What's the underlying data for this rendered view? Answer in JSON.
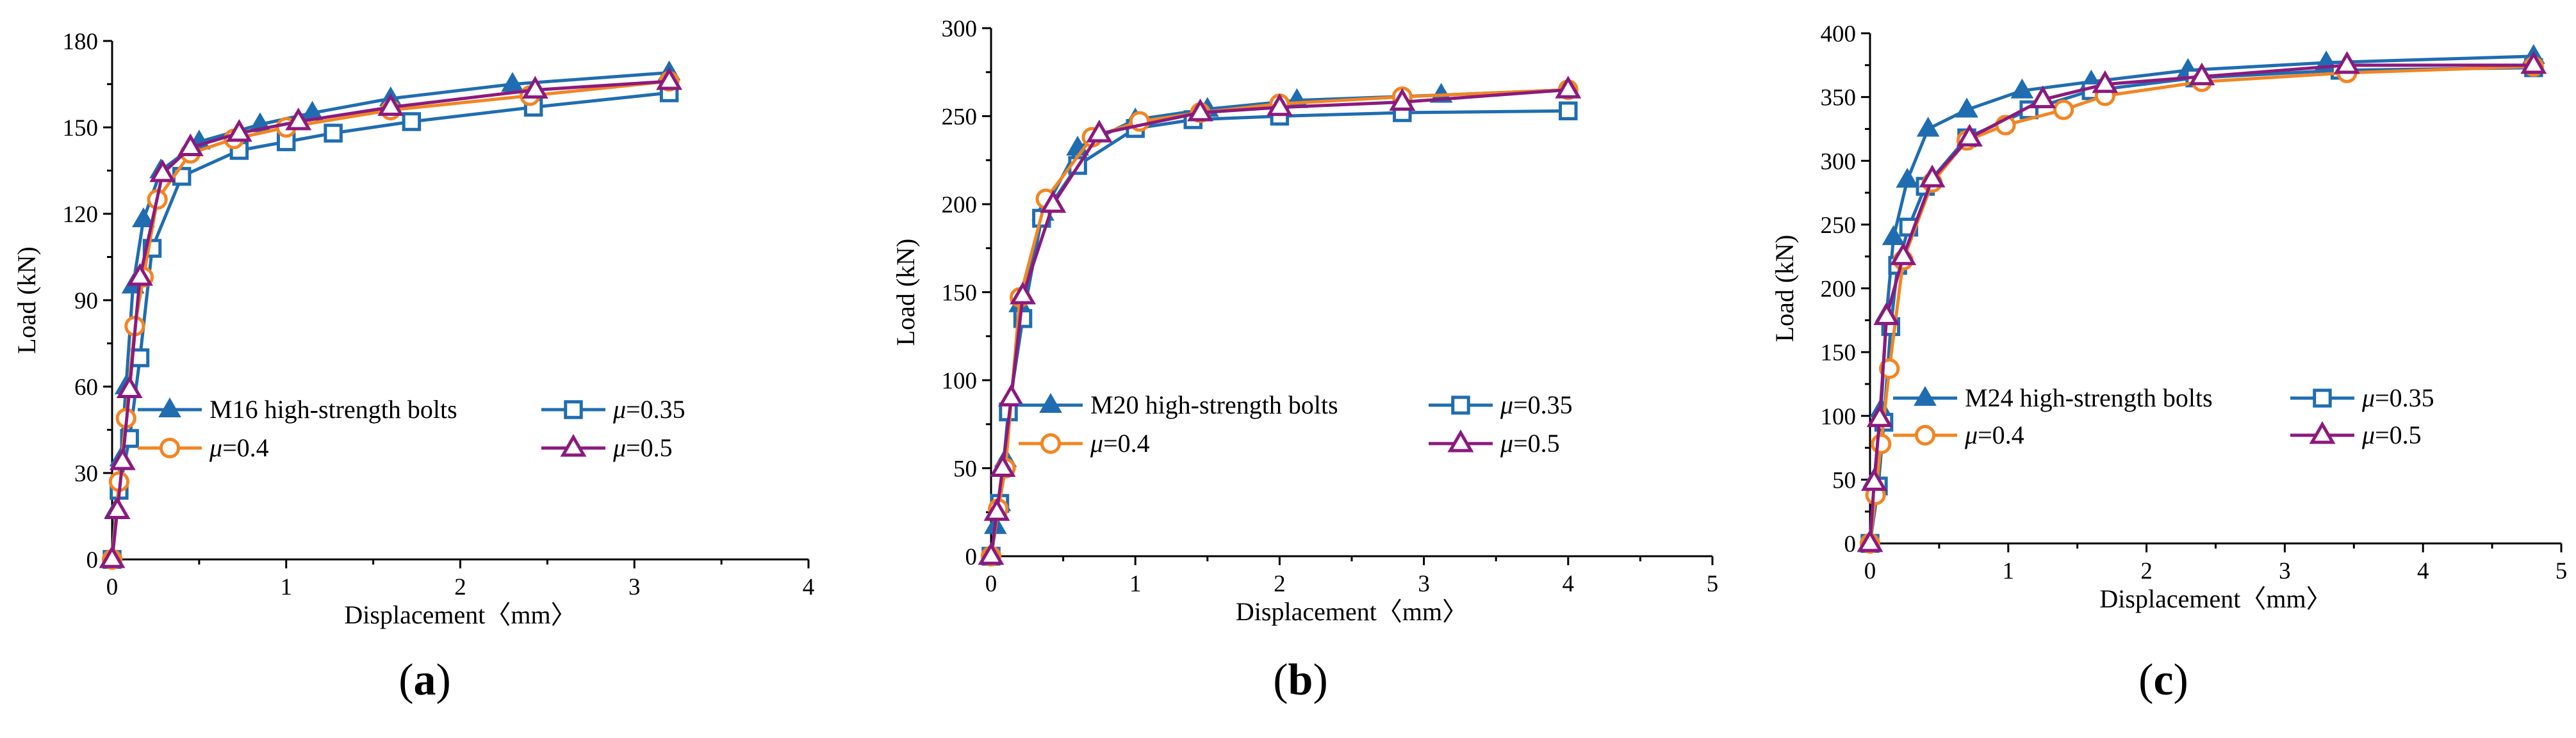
{
  "figure": {
    "colors": {
      "bolt": "#1f6db0",
      "mu035": "#1f6db0",
      "mu04": "#f28522",
      "mu05": "#8b1a7e"
    }
  },
  "chart_data": [
    {
      "type": "line",
      "panel_label": "(a)",
      "xlabel": "Displacement〈mm〉",
      "ylabel": "Load (kN)",
      "xlim": [
        0,
        4
      ],
      "ylim": [
        0,
        180
      ],
      "xticks": [
        0,
        1,
        2,
        3,
        4
      ],
      "yticks": [
        0,
        30,
        60,
        90,
        120,
        150,
        180
      ],
      "xtick_labels": [
        "0",
        "1",
        "2",
        "3",
        "4"
      ],
      "ytick_labels": [
        "0",
        "30",
        "60",
        "90",
        "120",
        "150",
        "180"
      ],
      "legend": [
        "M16 high-strength bolts",
        "μ=0.35",
        "μ=0.4",
        "μ=0.5"
      ],
      "series": [
        {
          "name": "M16 high-strength bolts",
          "marker": "triangle-filled",
          "color": "#1f6db0",
          "x": [
            0,
            0.02,
            0.05,
            0.08,
            0.12,
            0.18,
            0.28,
            0.5,
            0.85,
            1.15,
            1.6,
            2.3,
            3.2
          ],
          "y": [
            0,
            17,
            35,
            60,
            95,
            118,
            135,
            145,
            151,
            155,
            160,
            165,
            169
          ]
        },
        {
          "name": "μ=0.35",
          "marker": "square-open",
          "color": "#1f6db0",
          "x": [
            0,
            0.04,
            0.1,
            0.16,
            0.23,
            0.4,
            0.73,
            1.0,
            1.27,
            1.72,
            2.42,
            3.2
          ],
          "y": [
            0,
            24,
            42,
            70,
            108,
            133,
            142,
            145,
            148,
            152,
            157,
            162
          ]
        },
        {
          "name": "μ=0.4",
          "marker": "circle-open",
          "color": "#f28522",
          "x": [
            0,
            0.04,
            0.08,
            0.13,
            0.18,
            0.26,
            0.45,
            0.7,
            1.0,
            1.6,
            2.4,
            3.2
          ],
          "y": [
            0,
            27,
            49,
            81,
            98,
            125,
            141,
            146,
            150,
            156,
            161,
            166
          ]
        },
        {
          "name": "μ=0.5",
          "marker": "triangle-open",
          "color": "#8b1a7e",
          "x": [
            0,
            0.03,
            0.06,
            0.1,
            0.16,
            0.29,
            0.45,
            0.73,
            1.07,
            1.6,
            2.43,
            3.2
          ],
          "y": [
            0,
            17,
            34,
            59,
            98,
            134,
            143,
            148,
            152,
            157,
            163,
            166
          ]
        }
      ]
    },
    {
      "type": "line",
      "panel_label": "(b)",
      "xlabel": "Displacement〈mm〉",
      "ylabel": "Load (kN)",
      "xlim": [
        0,
        5
      ],
      "ylim": [
        0,
        300
      ],
      "xticks": [
        0,
        1,
        2,
        3,
        4,
        5
      ],
      "yticks": [
        0,
        50,
        100,
        150,
        200,
        250,
        300
      ],
      "xtick_labels": [
        "0",
        "1",
        "2",
        "3",
        "4",
        "5"
      ],
      "ytick_labels": [
        "0",
        "50",
        "100",
        "150",
        "200",
        "250",
        "300"
      ],
      "legend": [
        "M20 high-strength bolts",
        "μ=0.35",
        "μ=0.4",
        "μ=0.5"
      ],
      "series": [
        {
          "name": "M20 high-strength bolts",
          "marker": "triangle-filled",
          "color": "#1f6db0",
          "x": [
            0,
            0.03,
            0.06,
            0.1,
            0.2,
            0.36,
            0.6,
            1.0,
            1.5,
            2.12,
            3.12,
            4.0
          ],
          "y": [
            0,
            17,
            30,
            55,
            143,
            195,
            232,
            248,
            254,
            259,
            262,
            265
          ]
        },
        {
          "name": "μ=0.35",
          "marker": "square-open",
          "color": "#1f6db0",
          "x": [
            0,
            0.06,
            0.12,
            0.22,
            0.35,
            0.6,
            1.0,
            1.4,
            2.0,
            2.85,
            4.0
          ],
          "y": [
            0,
            30,
            82,
            135,
            192,
            222,
            243,
            248,
            250,
            252,
            253
          ]
        },
        {
          "name": "μ=0.4",
          "marker": "circle-open",
          "color": "#f28522",
          "x": [
            0,
            0.05,
            0.1,
            0.2,
            0.38,
            0.7,
            1.03,
            1.45,
            2.0,
            2.85,
            4.0
          ],
          "y": [
            0,
            27,
            50,
            147,
            203,
            238,
            247,
            252,
            257,
            261,
            265
          ]
        },
        {
          "name": "μ=0.5",
          "marker": "triangle-open",
          "color": "#8b1a7e",
          "x": [
            0,
            0.04,
            0.08,
            0.14,
            0.22,
            0.43,
            0.75,
            1.45,
            2.0,
            2.85,
            4.0
          ],
          "y": [
            0,
            25,
            50,
            90,
            148,
            200,
            240,
            252,
            255,
            258,
            265
          ]
        }
      ]
    },
    {
      "type": "line",
      "panel_label": "(c)",
      "xlabel": "Displacement〈mm〉",
      "ylabel": "Load (kN)",
      "xlim": [
        0,
        5
      ],
      "ylim": [
        0,
        400
      ],
      "xticks": [
        0,
        1,
        2,
        3,
        4,
        5
      ],
      "yticks": [
        0,
        50,
        100,
        150,
        200,
        250,
        300,
        350,
        400
      ],
      "xtick_labels": [
        "0",
        "1",
        "2",
        "3",
        "4",
        "5"
      ],
      "ytick_labels": [
        "0",
        "50",
        "100",
        "150",
        "200",
        "250",
        "300",
        "350",
        "400"
      ],
      "legend": [
        "M24 high-strength bolts",
        "μ=0.35",
        "μ=0.4",
        "μ=0.5"
      ],
      "series": [
        {
          "name": "M24 high-strength bolts",
          "marker": "triangle-filled",
          "color": "#1f6db0",
          "x": [
            0,
            0.03,
            0.08,
            0.12,
            0.17,
            0.27,
            0.42,
            0.7,
            1.1,
            1.6,
            2.3,
            3.3,
            4.8
          ],
          "y": [
            0,
            50,
            105,
            180,
            240,
            285,
            325,
            340,
            355,
            362,
            371,
            377,
            382
          ]
        },
        {
          "name": "μ=0.35",
          "marker": "square-open",
          "color": "#1f6db0",
          "x": [
            0,
            0.06,
            0.1,
            0.15,
            0.2,
            0.28,
            0.4,
            0.7,
            1.15,
            1.6,
            2.35,
            3.4,
            4.8
          ],
          "y": [
            0,
            45,
            95,
            170,
            218,
            248,
            280,
            318,
            340,
            355,
            365,
            371,
            373
          ]
        },
        {
          "name": "μ=0.4",
          "marker": "circle-open",
          "color": "#f28522",
          "x": [
            0,
            0.04,
            0.08,
            0.14,
            0.24,
            0.45,
            0.7,
            0.98,
            1.4,
            1.7,
            2.4,
            3.45,
            4.8
          ],
          "y": [
            0,
            38,
            78,
            137,
            222,
            283,
            316,
            328,
            340,
            351,
            362,
            369,
            374
          ]
        },
        {
          "name": "μ=0.5",
          "marker": "triangle-open",
          "color": "#8b1a7e",
          "x": [
            0,
            0.03,
            0.07,
            0.12,
            0.24,
            0.45,
            0.72,
            1.25,
            1.7,
            2.4,
            3.45,
            4.8
          ],
          "y": [
            0,
            48,
            98,
            178,
            225,
            286,
            318,
            348,
            360,
            366,
            375,
            375
          ]
        }
      ]
    }
  ]
}
